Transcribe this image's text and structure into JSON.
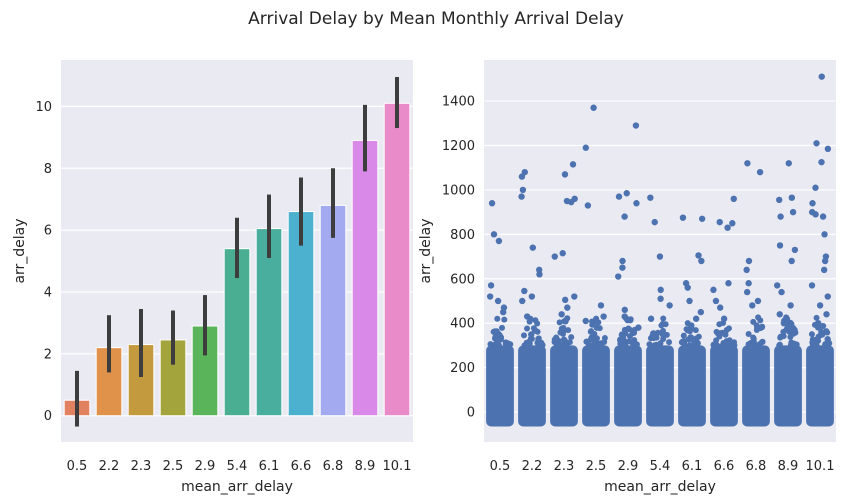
{
  "suptitle": "Arrival Delay by Mean Monthly Arrival Delay",
  "colors": {
    "panel_bg": "#eaeaf2",
    "grid": "#ffffff",
    "errbar": "#3d3d3d",
    "strip_point": "#4c72b0"
  },
  "chart_data": [
    {
      "type": "bar",
      "xlabel": "mean_arr_delay",
      "ylabel": "arr_delay",
      "categories": [
        "0.5",
        "2.2",
        "2.3",
        "2.5",
        "2.9",
        "5.4",
        "6.1",
        "6.6",
        "6.8",
        "8.9",
        "10.1"
      ],
      "values": [
        0.5,
        2.2,
        2.3,
        2.45,
        2.9,
        5.4,
        6.05,
        6.6,
        6.8,
        8.9,
        10.1
      ],
      "ci_low": [
        -0.35,
        1.4,
        1.25,
        1.65,
        1.95,
        4.45,
        5.1,
        5.5,
        5.75,
        7.9,
        9.3
      ],
      "ci_high": [
        1.45,
        3.25,
        3.45,
        3.4,
        3.9,
        6.4,
        7.15,
        7.7,
        8.0,
        10.05,
        10.95
      ],
      "bar_colors": [
        "#e1815f",
        "#e0924b",
        "#c49a3e",
        "#a3a43c",
        "#59b45a",
        "#4aaf92",
        "#4aae9e",
        "#4cb1cf",
        "#a3aaef",
        "#d98ae8",
        "#e98ac9"
      ],
      "yticks": [
        0,
        2,
        4,
        6,
        8,
        10
      ],
      "ylim": [
        -0.85,
        11.5
      ],
      "grid": true
    },
    {
      "type": "scatter",
      "subtype": "strip",
      "xlabel": "mean_arr_delay",
      "ylabel": "arr_delay",
      "categories": [
        "0.5",
        "2.2",
        "2.3",
        "2.5",
        "2.9",
        "5.4",
        "6.1",
        "6.6",
        "6.8",
        "8.9",
        "10.1"
      ],
      "dense_range": [
        -65,
        300
      ],
      "outliers": [
        [
          940,
          800,
          770,
          570,
          520,
          500,
          470,
          450
        ],
        [
          1080,
          1060,
          1000,
          970,
          740,
          640,
          620,
          545,
          520,
          500,
          430
        ],
        [
          1115,
          1070,
          960,
          950,
          945,
          715,
          700,
          520,
          505,
          470,
          440
        ],
        [
          1370,
          1190,
          930,
          480,
          430,
          410,
          380
        ],
        [
          1290,
          985,
          970,
          940,
          880,
          680,
          650,
          610,
          460,
          430,
          380
        ],
        [
          965,
          855,
          700,
          550,
          510,
          480,
          420
        ],
        [
          875,
          870,
          705,
          680,
          580,
          560,
          500,
          450,
          420
        ],
        [
          960,
          855,
          850,
          830,
          580,
          550,
          500,
          470,
          420
        ],
        [
          1120,
          1080,
          680,
          640,
          580,
          540,
          500,
          480
        ],
        [
          1120,
          965,
          955,
          900,
          880,
          750,
          730,
          680,
          570,
          540,
          480,
          440,
          400
        ],
        [
          1510,
          1210,
          1185,
          1125,
          1010,
          940,
          900,
          890,
          880,
          800,
          700,
          680,
          640,
          570,
          520,
          480,
          440,
          400,
          360
        ]
      ],
      "yticks": [
        0,
        200,
        400,
        600,
        800,
        1000,
        1200,
        1400
      ],
      "ylim": [
        -135,
        1585
      ],
      "grid": true
    }
  ]
}
